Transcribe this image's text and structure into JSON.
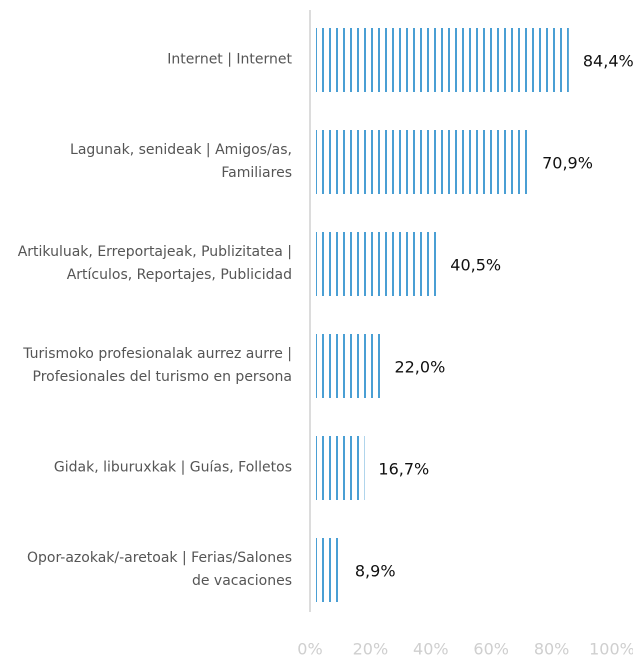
{
  "chart_data": {
    "type": "bar",
    "orientation": "horizontal",
    "categories": [
      "Internet | Internet",
      "Lagunak, senideak | Amigos/as, Familiares",
      "Artikuluak, Erreportajeak, Publizitatea | Artículos, Reportajes, Publicidad",
      "Turismoko profesionalak aurrez aurre | Profesionales del turismo en persona",
      "Gidak, liburuxkak | Guías, Folletos",
      "Opor-azokak/-aretoak | Ferias/Salones de vacaciones"
    ],
    "values": [
      84.4,
      70.9,
      40.5,
      22.0,
      16.7,
      8.9
    ],
    "value_labels": [
      "84,4%",
      "70,9%",
      "40,5%",
      "22,0%",
      "16,7%",
      "8,9%"
    ],
    "color": "#4a9fd4",
    "xlim": [
      0,
      100
    ],
    "xticks": [
      {
        "value": 0,
        "label": "0%"
      },
      {
        "value": 20,
        "label": "20%"
      },
      {
        "value": 40,
        "label": "40%"
      },
      {
        "value": 60,
        "label": "60%"
      },
      {
        "value": 80,
        "label": "80%"
      },
      {
        "value": 100,
        "label": "100%"
      }
    ]
  }
}
